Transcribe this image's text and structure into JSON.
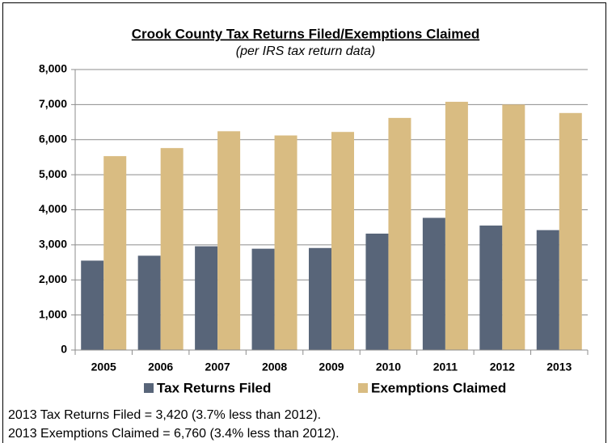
{
  "chart_data": {
    "type": "bar",
    "title": "Crook County Tax Returns Filed/Exemptions Claimed",
    "subtitle": "(per IRS tax return data)",
    "categories": [
      "2005",
      "2006",
      "2007",
      "2008",
      "2009",
      "2010",
      "2011",
      "2012",
      "2013"
    ],
    "series": [
      {
        "name": "Tax Returns Filed",
        "color": "#586579",
        "values": [
          2550,
          2690,
          2960,
          2890,
          2910,
          3320,
          3770,
          3550,
          3420
        ]
      },
      {
        "name": "Exemptions Claimed",
        "color": "#d9bc82",
        "values": [
          5530,
          5760,
          6240,
          6120,
          6220,
          6620,
          7080,
          7000,
          6760
        ]
      }
    ],
    "ylim": [
      0,
      8000
    ],
    "yticks": [
      0,
      {
        "value": 1000,
        "label": "1,000"
      },
      {
        "value": 2000,
        "label": "2,000"
      },
      {
        "value": 3000,
        "label": "3,000"
      },
      {
        "value": 4000,
        "label": "4,000"
      },
      {
        "value": 5000,
        "label": "5,000"
      },
      {
        "value": 6000,
        "label": "6,000"
      },
      {
        "value": 7000,
        "label": "7,000"
      },
      {
        "value": 8000,
        "label": "8,000"
      }
    ],
    "grid": true,
    "legend": "bottom",
    "notes": [
      "2013 Tax Returns Filed = 3,420 (3.7% less than 2012).",
      "2013 Exemptions Claimed = 6,760 (3.4% less than 2012)."
    ]
  }
}
